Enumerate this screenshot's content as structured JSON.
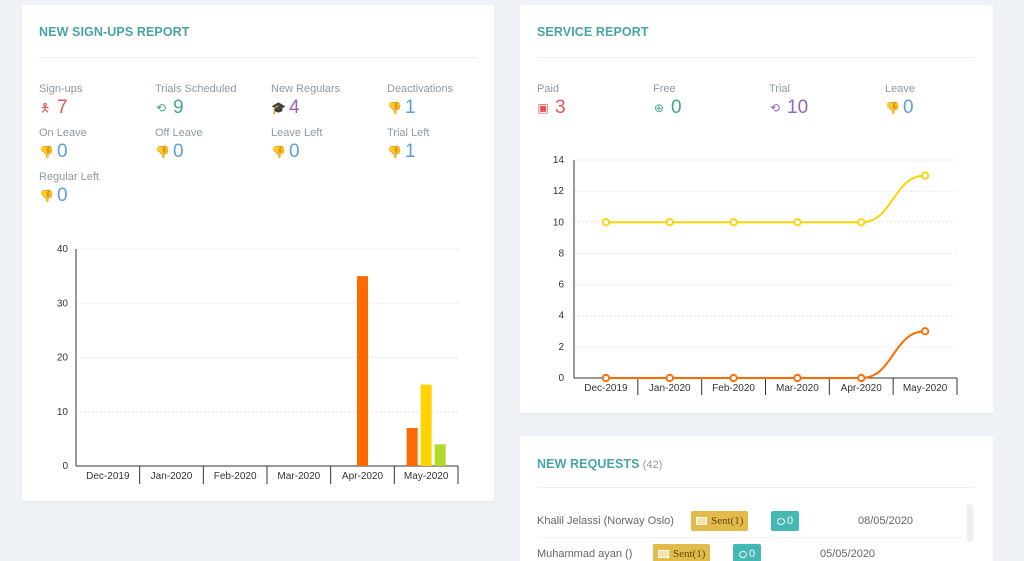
{
  "signups": {
    "title": "NEW SIGN-UPS REPORT",
    "stats": [
      {
        "label": "Sign-ups",
        "value": "7",
        "icon": "person-icon",
        "glyph": "🯅",
        "color": "#e9534f"
      },
      {
        "label": "Trials Scheduled",
        "value": "9",
        "icon": "history-icon",
        "glyph": "⟲",
        "color": "#46a58f"
      },
      {
        "label": "New Regulars",
        "value": "4",
        "icon": "graduation-cap-icon",
        "glyph": "🎓",
        "color": "#9565b8"
      },
      {
        "label": "Deactivations",
        "value": "1",
        "icon": "thumbs-down-icon",
        "glyph": "👎",
        "color": "#5e9ed6"
      },
      {
        "label": "On Leave",
        "value": "0",
        "icon": "thumbs-down-icon",
        "glyph": "👎",
        "color": "#5e9ed6"
      },
      {
        "label": "Off Leave",
        "value": "0",
        "icon": "thumbs-down-icon",
        "glyph": "👎",
        "color": "#5e9ed6"
      },
      {
        "label": "Leave Left",
        "value": "0",
        "icon": "thumbs-down-icon",
        "glyph": "👎",
        "color": "#5e9ed6"
      },
      {
        "label": "Trial Left",
        "value": "1",
        "icon": "thumbs-down-icon",
        "glyph": "👎",
        "color": "#5e9ed6"
      },
      {
        "label": "Regular Left",
        "value": "0",
        "icon": "thumbs-down-icon",
        "glyph": "👎",
        "color": "#5e9ed6"
      }
    ]
  },
  "service": {
    "title": "SERVICE REPORT",
    "stats": [
      {
        "label": "Paid",
        "value": "3",
        "icon": "money-icon",
        "glyph": "▣",
        "color": "#e9534f"
      },
      {
        "label": "Free",
        "value": "0",
        "icon": "lifebuoy-icon",
        "glyph": "⊕",
        "color": "#46a58f"
      },
      {
        "label": "Trial",
        "value": "10",
        "icon": "history-icon",
        "glyph": "⟲",
        "color": "#9565b8"
      },
      {
        "label": "Leave",
        "value": "0",
        "icon": "thumbs-down-icon",
        "glyph": "👎",
        "color": "#5e9ed6"
      }
    ]
  },
  "requests": {
    "title": "NEW REQUESTS",
    "count": "(42)",
    "rows": [
      {
        "name": "Khalil Jelassi  (Norway Oslo)",
        "sent": "Sent(1)",
        "messages": "0",
        "date": "08/05/2020"
      },
      {
        "name": "Muhammad ayan  ()",
        "sent": "Sent(1)",
        "messages": "0",
        "date": "05/05/2020"
      }
    ]
  },
  "chart_data": [
    {
      "type": "bar",
      "categories": [
        "Dec-2019",
        "Jan-2020",
        "Feb-2020",
        "Mar-2020",
        "Apr-2020",
        "May-2020"
      ],
      "series": [
        {
          "values": [
            0,
            0,
            0,
            0,
            35,
            7
          ],
          "color": "#ff6a00"
        },
        {
          "values": [
            0,
            0,
            0,
            0,
            0,
            15
          ],
          "color": "#ffd200"
        },
        {
          "values": [
            0,
            0,
            0,
            0,
            0,
            4
          ],
          "color": "#b2d82a"
        }
      ],
      "ylim": [
        0,
        40
      ],
      "yticks": [
        0,
        10,
        20,
        30,
        40
      ],
      "grid": true
    },
    {
      "type": "line",
      "categories": [
        "Dec-2019",
        "Jan-2020",
        "Feb-2020",
        "Mar-2020",
        "Apr-2020",
        "May-2020"
      ],
      "series": [
        {
          "values": [
            10,
            10,
            10,
            10,
            10,
            13
          ],
          "color": "#ffd200"
        },
        {
          "values": [
            0,
            0,
            0,
            0,
            0,
            3
          ],
          "color": "#ff6a00"
        }
      ],
      "ylim": [
        0,
        14
      ],
      "yticks": [
        0,
        2,
        4,
        6,
        8,
        10,
        12,
        14
      ],
      "grid": true
    }
  ]
}
